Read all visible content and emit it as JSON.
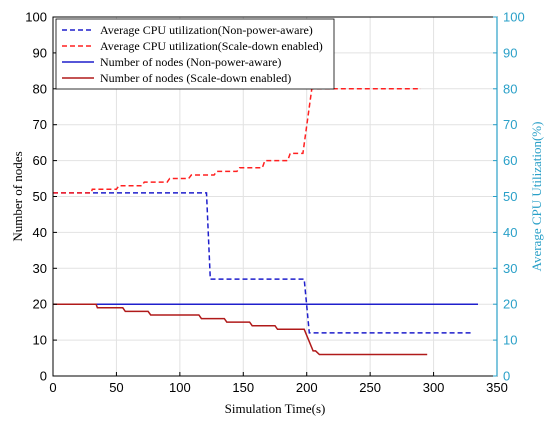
{
  "chart_data": {
    "type": "line",
    "title": "",
    "xlabel": "Simulation Time(s)",
    "ylabel_left": "Number of nodes",
    "ylabel_right": "Average CPU Utilization(%)",
    "xlim": [
      0,
      350
    ],
    "ylim_left": [
      0,
      100
    ],
    "ylim_right": [
      0,
      100
    ],
    "x_ticks": [
      0,
      50,
      100,
      150,
      200,
      250,
      300,
      350
    ],
    "y_ticks_left": [
      0,
      10,
      20,
      30,
      40,
      50,
      60,
      70,
      80,
      90,
      100
    ],
    "y_ticks_right": [
      0,
      10,
      20,
      30,
      40,
      50,
      60,
      70,
      80,
      90,
      100
    ],
    "grid": true,
    "legend_position": "top-left",
    "colors": {
      "blue": "#1f1fcc",
      "red": "#ff2020",
      "darkred": "#b01a1a",
      "right_axis": "#2aa0c8"
    },
    "series": [
      {
        "name": "Average CPU utilization(Non-power-aware)",
        "axis": "right",
        "style": "dashed",
        "color": "blue",
        "x": [
          0,
          121,
          124,
          198,
          202,
          330
        ],
        "y": [
          51,
          51,
          27,
          27,
          12,
          12
        ]
      },
      {
        "name": "Average CPU utilization(Scale-down enabled)",
        "axis": "right",
        "style": "dashed",
        "color": "red",
        "x": [
          0,
          30,
          31,
          50,
          52,
          70,
          72,
          90,
          92,
          107,
          109,
          127,
          129,
          145,
          147,
          165,
          167,
          185,
          187,
          197,
          204,
          210,
          290
        ],
        "y": [
          51,
          51,
          52,
          52,
          53,
          53,
          54,
          54,
          55,
          55,
          56,
          56,
          57,
          57,
          58,
          58,
          60,
          60,
          62,
          62,
          80,
          80,
          80
        ]
      },
      {
        "name": "Number of nodes (Non-power-aware)",
        "axis": "left",
        "style": "solid",
        "color": "blue",
        "x": [
          0,
          335
        ],
        "y": [
          20,
          20
        ]
      },
      {
        "name": "Number of nodes (Scale-down enabled)",
        "axis": "left",
        "style": "solid",
        "color": "darkred",
        "x": [
          0,
          34,
          35,
          55,
          57,
          75,
          77,
          95,
          97,
          115,
          117,
          135,
          137,
          155,
          157,
          175,
          177,
          196,
          198,
          205,
          207,
          210,
          295
        ],
        "y": [
          20,
          20,
          19,
          19,
          18,
          18,
          17,
          17,
          17,
          17,
          16,
          16,
          15,
          15,
          14,
          14,
          13,
          13,
          13,
          7,
          7,
          6,
          6
        ]
      }
    ]
  }
}
